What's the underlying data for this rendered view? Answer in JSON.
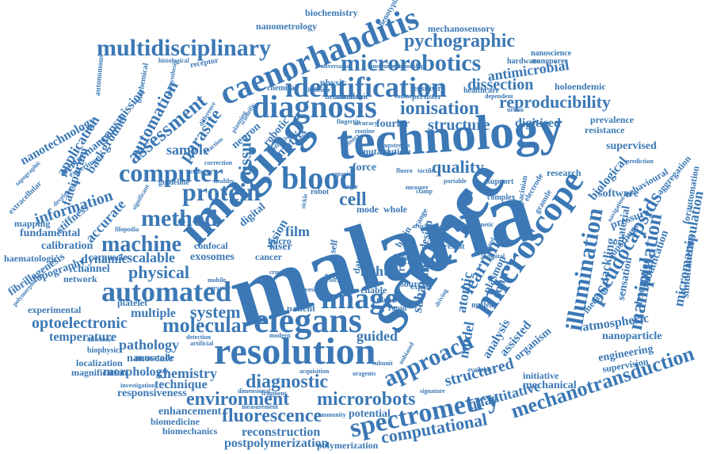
{
  "cloud": {
    "color": "#3b78b5",
    "words": [
      "malaria",
      "science",
      "technology",
      "imaging",
      "resolution",
      "diagnosis",
      "microscope",
      "image",
      "elegans",
      "blood",
      "caenorhabditis",
      "automated",
      "identification",
      "computer",
      "protein",
      "method",
      "multidisciplinary",
      "microrobotics",
      "spectrometry",
      "environment",
      "microrobots",
      "approach",
      "illumination",
      "learning",
      "pseudocapsids",
      "mechanotransduction",
      "computational",
      "fluorescence",
      "ionisation",
      "reproducibility",
      "dissection",
      "pychographic",
      "antimicrobial",
      "manipulation",
      "machine",
      "molecular",
      "diagnostic",
      "quality",
      "structure",
      "structured",
      "quantitative",
      "assessment",
      "automation",
      "parasite",
      "application",
      "information",
      "tissue",
      "cell",
      "sample",
      "physical",
      "system",
      "multiple",
      "pathology",
      "temperature",
      "optoelectronic",
      "morphology",
      "chemistry",
      "nanoscale",
      "reconstruction",
      "postpolymerization",
      "polymerization",
      "transmission",
      "nanotechnology",
      "digitised",
      "supervised",
      "biological",
      "atmospheric",
      "micromanipulation",
      "simultaneous",
      "mechanical",
      "nanoparticle",
      "engineering",
      "accurate",
      "dynamic",
      "scalable",
      "calibration",
      "fundamental",
      "haematologic",
      "stiffness",
      "mapping",
      "falciparum",
      "background",
      "nanometrology",
      "biochemistry",
      "mechanosensory",
      "holoendemic",
      "nanoscience",
      "prevalence",
      "resistance",
      "behavioural",
      "aggregation",
      "superbugs",
      "modification",
      "analysis",
      "control",
      "assisted",
      "organism",
      "plasmon",
      "atomic",
      "model",
      "guided",
      "field",
      "light",
      "film",
      "africa",
      "saharan",
      "vision",
      "matrix",
      "neuron",
      "robotic",
      "fourier",
      "force",
      "mutant",
      "cuticle",
      "digital",
      "experimental",
      "platelet",
      "channel",
      "network",
      "topography",
      "fibrillogenesis",
      "technique",
      "responsiveness",
      "enhancement",
      "biomedicine",
      "biomechanics",
      "potential",
      "initiative",
      "supervision",
      "localization",
      "magnification",
      "nematode",
      "biophysic",
      "confocal",
      "exosomes",
      "forautomation",
      "software",
      "tackling",
      "sensation",
      "desorption",
      "pressure",
      "research",
      "medicine",
      "material",
      "performance",
      "experiment",
      "extracellular",
      "autonomous",
      "biochemical",
      "histological",
      "receptor",
      "postsynthesis",
      "hardware",
      "nanopores",
      "healthcare",
      "instrument",
      "physic",
      "chemical",
      "mechanic",
      "neuronal",
      "sensitivity",
      "persister",
      "dependent",
      "nano",
      "source",
      "enable",
      "patient",
      "cancer",
      "laser",
      "micro",
      "touch",
      "data",
      "self",
      "mode",
      "whole",
      "robot",
      "collagen",
      "guideline",
      "healthy",
      "brain",
      "design",
      "present",
      "fragment",
      "acquisition",
      "oragents",
      "subunit",
      "signature",
      "measurement",
      "dimensional",
      "community",
      "investigation",
      "infectious",
      "versatile",
      "artificial",
      "detection",
      "mobile",
      "nuclear",
      "available",
      "kinetic",
      "complex",
      "granule",
      "electrode",
      "pacinian",
      "support",
      "clamp",
      "capacity",
      "fluoro",
      "tactile",
      "portable",
      "planning",
      "scientific",
      "difference",
      "correction",
      "reaction",
      "effective",
      "fingertip",
      "accuracy",
      "routine",
      "primary",
      "relationship",
      "contact",
      "measure",
      "range",
      "expert",
      "cross",
      "single",
      "sickle",
      "social",
      "article",
      "biology",
      "vesicle",
      "modern",
      "rapid",
      "phenotyping",
      "challenge",
      "adversarial",
      "upstream",
      "driving",
      "hospital",
      "urban",
      "standard",
      "carpuscle",
      "filopodia",
      "significant",
      "development",
      "polymorphic",
      "topographic",
      "unbiased",
      "prediction",
      "navigation"
    ]
  }
}
